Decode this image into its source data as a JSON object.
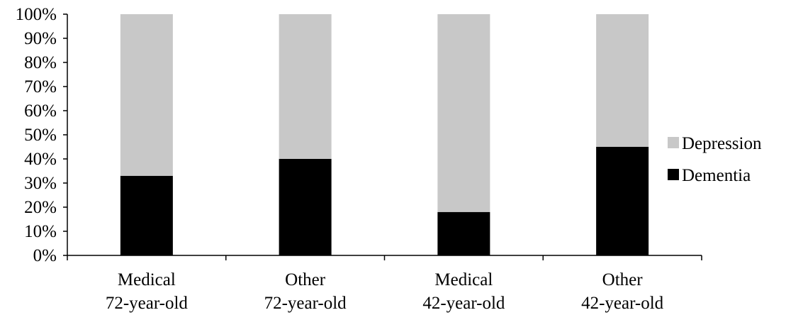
{
  "chart_data": {
    "type": "bar",
    "stacked": true,
    "percent_stacked": true,
    "categories": [
      [
        "Medical",
        "72-year-old"
      ],
      [
        "Other",
        "72-year-old"
      ],
      [
        "Medical",
        "42-year-old"
      ],
      [
        "Other",
        "42-year-old"
      ]
    ],
    "series": [
      {
        "name": "Dementia",
        "color": "#000000",
        "values": [
          33,
          40,
          18,
          45
        ]
      },
      {
        "name": "Depression",
        "color": "#c8c8c8",
        "values": [
          67,
          60,
          82,
          55
        ]
      }
    ],
    "yticks": [
      "0%",
      "10%",
      "20%",
      "30%",
      "40%",
      "50%",
      "60%",
      "70%",
      "80%",
      "90%",
      "100%"
    ],
    "ylim": [
      0,
      100
    ],
    "title": "",
    "xlabel": "",
    "ylabel": "",
    "grid": false,
    "legend": {
      "position": "right",
      "order": [
        "Depression",
        "Dementia"
      ]
    }
  }
}
